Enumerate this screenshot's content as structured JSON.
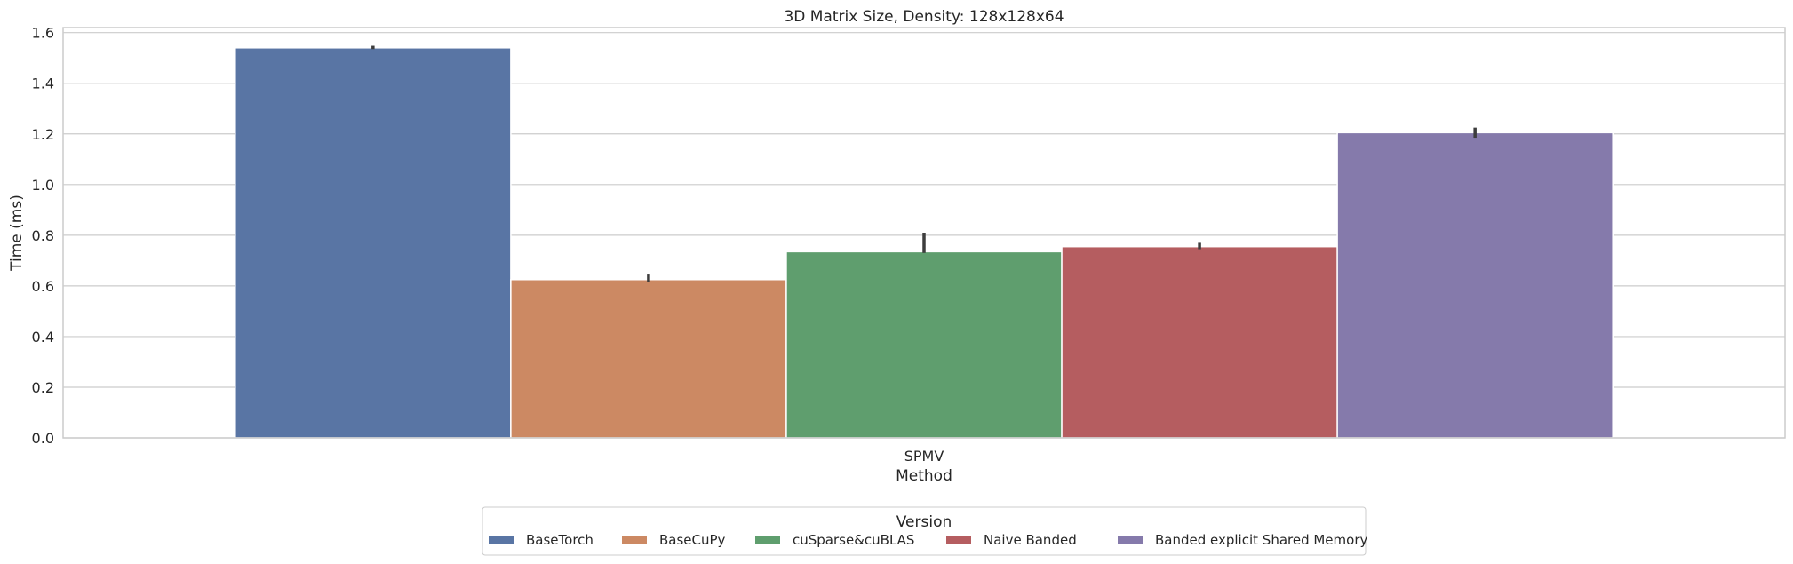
{
  "chart_data": {
    "type": "bar",
    "title": "3D Matrix Size, Density: 128x128x64",
    "xlabel": "Method",
    "ylabel": "Time (ms)",
    "categories": [
      "SPMV"
    ],
    "ylim": [
      0,
      1.62
    ],
    "yticks": [
      "0.0",
      "0.2",
      "0.4",
      "0.6",
      "0.8",
      "1.0",
      "1.2",
      "1.4",
      "1.6"
    ],
    "grid": true,
    "legend": {
      "title": "Version",
      "placement": "bottom-center"
    },
    "series": [
      {
        "name": "BaseTorch",
        "values": [
          1.54
        ],
        "error": [
          [
            1.535,
            1.548
          ]
        ],
        "color": "#5975a4"
      },
      {
        "name": "BaseCuPy",
        "values": [
          0.625
        ],
        "error": [
          [
            0.615,
            0.645
          ]
        ],
        "color": "#cc8963"
      },
      {
        "name": "cuSparse&cuBLAS",
        "values": [
          0.735
        ],
        "error": [
          [
            0.73,
            0.81
          ]
        ],
        "color": "#5f9e6e"
      },
      {
        "name": "Naive Banded",
        "values": [
          0.755
        ],
        "error": [
          [
            0.745,
            0.77
          ]
        ],
        "color": "#b55d60"
      },
      {
        "name": "Banded explicit Shared Memory",
        "values": [
          1.205
        ],
        "error": [
          [
            1.185,
            1.225
          ]
        ],
        "color": "#857aab"
      }
    ]
  }
}
